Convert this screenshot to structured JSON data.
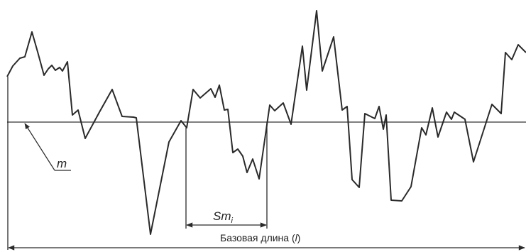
{
  "labels": {
    "mean_line": "m",
    "spacing_main": "Sm",
    "spacing_sub": "i",
    "base_length_prefix": "Базовая длина (",
    "base_length_symbol": "l",
    "base_length_suffix": ")"
  },
  "colors": {
    "stroke": "#2a2a2a",
    "mean_line": "#555555",
    "background": "#ffffff"
  }
}
